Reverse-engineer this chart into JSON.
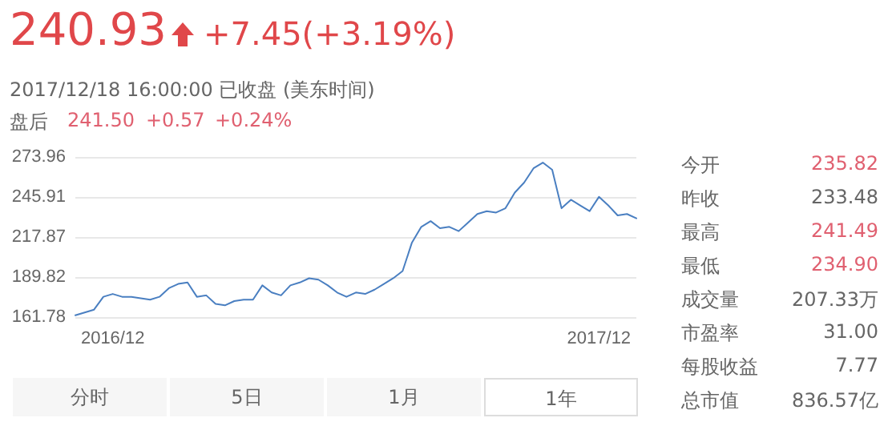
{
  "chart_data": {
    "type": "line",
    "title": "240.93",
    "subtitle": "+7.45(+3.19%)",
    "annotations": [
      "2017/12/18 16:00:00  已收盘 (美东时间)",
      "盘后",
      "241.50",
      "+0.57",
      "+0.24%",
      "今开",
      "235.82",
      "昨收",
      "233.48",
      "最高",
      "241.49",
      "最低",
      "234.90",
      "成交量",
      "207.33万",
      "市盈率",
      "31.00",
      "每股收益",
      "7.77",
      "总市值",
      "836.57亿",
      "分时",
      "5日",
      "1月",
      "1年"
    ],
    "categories": [
      null,
      null,
      null,
      null,
      "2016/12",
      null,
      null,
      null,
      null,
      null,
      null,
      null,
      null,
      null,
      null,
      null,
      null,
      null,
      null,
      null,
      null,
      null,
      null,
      null,
      null,
      null,
      null,
      null,
      null,
      null,
      null,
      null,
      null,
      null,
      null,
      null,
      null,
      null,
      null,
      null,
      null,
      null,
      null,
      null,
      null,
      null,
      null,
      null,
      null,
      null,
      null,
      null,
      null,
      null,
      null,
      null,
      "2017/12",
      null,
      null,
      null,
      null
    ],
    "series": [
      {
        "color": "#4a7fc1",
        "values": [
          163,
          165,
          167,
          176,
          178,
          176,
          176,
          175,
          174,
          176,
          182,
          185,
          186,
          176,
          177,
          171,
          170,
          173,
          174,
          174,
          184,
          179,
          177,
          184,
          186,
          189,
          188,
          184,
          179,
          176,
          179,
          178,
          181,
          185,
          189,
          194,
          214,
          225,
          229,
          224,
          225,
          222,
          228,
          234,
          236,
          235,
          238,
          249,
          256,
          266,
          270,
          265,
          238,
          244,
          240,
          236,
          246,
          240,
          233,
          234,
          231
        ]
      }
    ],
    "ylim": [
      161.78,
      273.96
    ],
    "yticks": [
      161.78,
      189.82,
      217.87,
      245.91,
      273.96
    ],
    "grid": "y",
    "marker": "none",
    "line_style": "solid"
  }
}
